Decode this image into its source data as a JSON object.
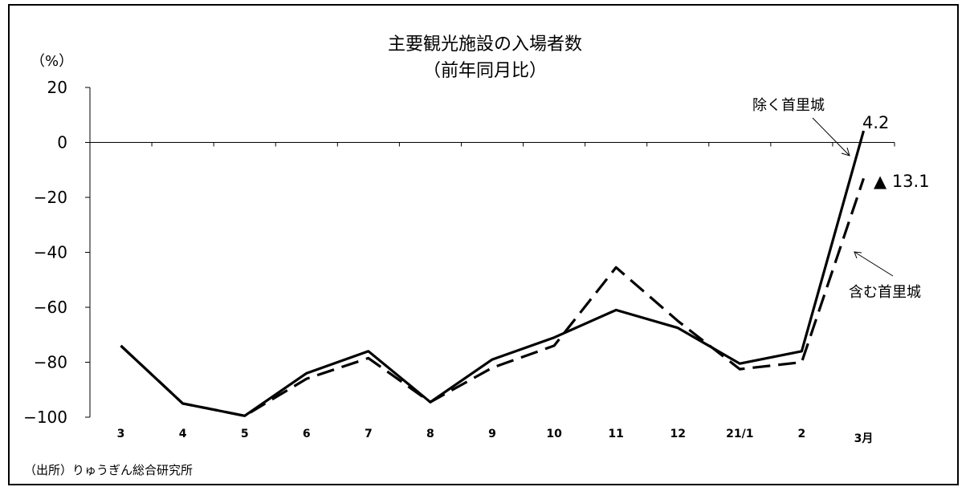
{
  "chart_data": {
    "type": "line",
    "title": "主要観光施設の入場者数",
    "subtitle": "（前年同月比）",
    "ylabel": "（%）",
    "ylim": [
      -100,
      20
    ],
    "yticks": [
      20,
      0,
      -20,
      -40,
      -60,
      -80,
      -100
    ],
    "ytick_labels": [
      "20",
      "0",
      "−20",
      "−40",
      "−60",
      "−80",
      "−100"
    ],
    "categories": [
      "3",
      "4",
      "5",
      "6",
      "7",
      "8",
      "9",
      "10",
      "11",
      "12",
      "21/1",
      "2",
      "3月"
    ],
    "series": [
      {
        "name": "除く首里城",
        "style": "solid",
        "values": [
          -74,
          -95,
          -99.5,
          -84,
          -76,
          -94.5,
          -79,
          -71,
          -61,
          -67.5,
          -80.5,
          -76,
          4.2
        ]
      },
      {
        "name": "含む首里城",
        "style": "dashed",
        "values": [
          -74,
          -95,
          -99.5,
          -86,
          -78.5,
          -94.5,
          -82,
          -74,
          -45.5,
          -65,
          -82.5,
          -80,
          -13.1
        ]
      }
    ],
    "annotations": {
      "last_solid_value": "4.2",
      "last_dashed_value": "▲ 13.1"
    },
    "grid": false,
    "source": "（出所）りゅうぎん総合研究所"
  }
}
